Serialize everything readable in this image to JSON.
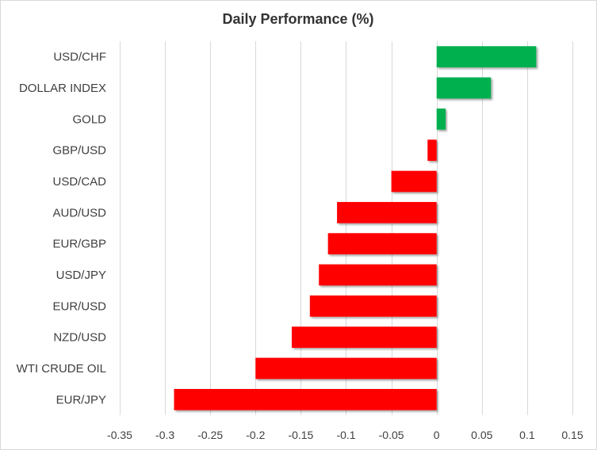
{
  "chart_data": {
    "type": "bar",
    "orientation": "horizontal",
    "title": "Daily Performance (%)",
    "xlabel": "",
    "ylabel": "",
    "categories": [
      "USD/CHF",
      "DOLLAR INDEX",
      "GOLD",
      "GBP/USD",
      "USD/CAD",
      "AUD/USD",
      "EUR/GBP",
      "USD/JPY",
      "EUR/USD",
      "NZD/USD",
      "WTI CRUDE OIL",
      "EUR/JPY"
    ],
    "values": [
      0.11,
      0.06,
      0.01,
      -0.01,
      -0.05,
      -0.11,
      -0.12,
      -0.13,
      -0.14,
      -0.16,
      -0.2,
      -0.29
    ],
    "xlim": [
      -0.35,
      0.15
    ],
    "xticks": [
      -0.35,
      -0.3,
      -0.25,
      -0.2,
      -0.15,
      -0.1,
      -0.05,
      0,
      0.05,
      0.1,
      0.15
    ],
    "xtick_labels": [
      "-0.35",
      "-0.3",
      "-0.25",
      "-0.2",
      "-0.15",
      "-0.1",
      "-0.05",
      "0",
      "0.05",
      "0.1",
      "0.15"
    ],
    "grid": true,
    "legend": "none",
    "colors": {
      "positive": "#00b050",
      "negative": "#ff0000",
      "grid": "#d9d9d9",
      "text": "#404040"
    }
  }
}
